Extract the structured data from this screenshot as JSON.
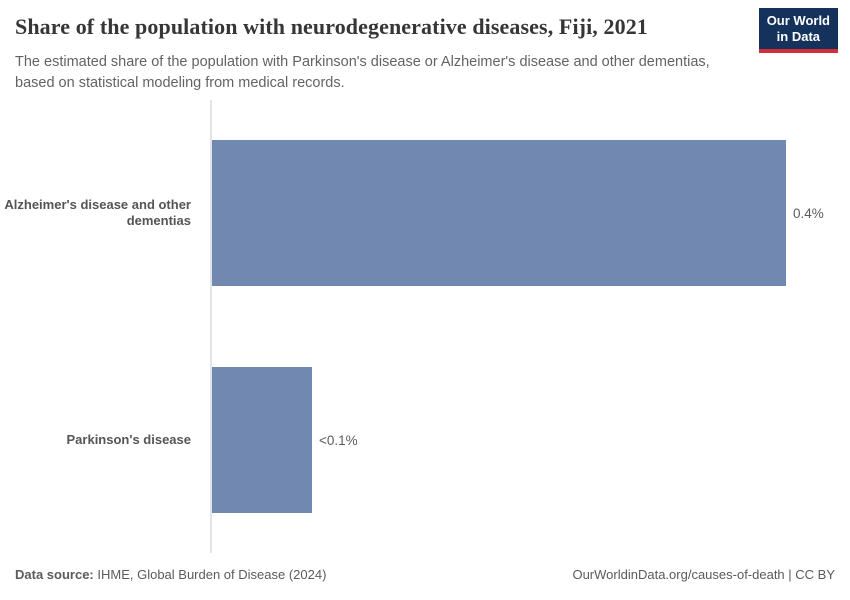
{
  "header": {
    "title": "Share of the population with neurodegenerative diseases, Fiji, 2021",
    "subtitle": "The estimated share of the population with Parkinson's disease or Alzheimer's disease and other dementias, based on statistical modeling from medical records.",
    "logo_line1": "Our World",
    "logo_line2": "in Data"
  },
  "chart_data": {
    "type": "bar",
    "orientation": "horizontal",
    "title": "Share of the population with neurodegenerative diseases, Fiji, 2021",
    "categories": [
      "Alzheimer's disease and other dementias",
      "Parkinson's disease"
    ],
    "values": [
      0.4,
      0.07
    ],
    "value_labels": [
      "0.4%",
      "<0.1%"
    ],
    "unit": "%",
    "xlim": [
      0,
      0.4
    ],
    "grid": false,
    "legend": "none",
    "bar_color": "#7189b1",
    "axis_color": "#e3e4e7"
  },
  "footer": {
    "datasource_label": "Data source:",
    "datasource_value": " IHME, Global Burden of Disease (2024)",
    "rights": "OurWorldinData.org/causes-of-death | CC BY"
  },
  "colors": {
    "bar": "#7189b1",
    "logo_bg": "#14325c",
    "logo_stripe": "#d02e38",
    "title_text": "#363636",
    "subtitle_text": "#636363"
  }
}
